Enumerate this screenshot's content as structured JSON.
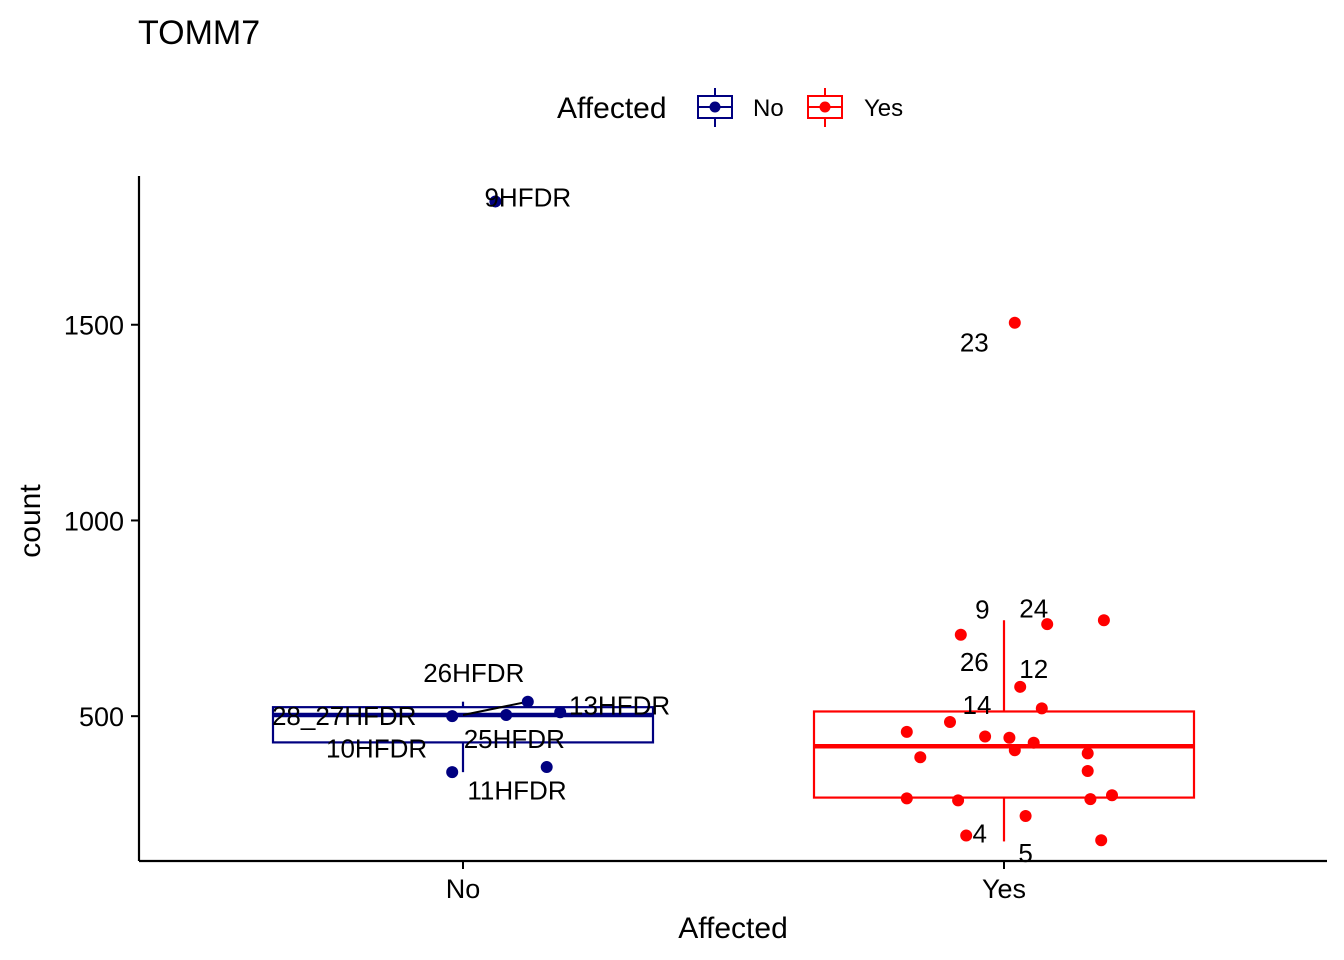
{
  "chart_data": {
    "type": "box-scatter",
    "title": "TOMM7",
    "xlabel": "Affected",
    "ylabel": "count",
    "categories": [
      "No",
      "Yes"
    ],
    "yticks": [
      500,
      1000,
      1500
    ],
    "ylim": [
      130,
      1880
    ],
    "legend": {
      "title": "Affected",
      "position": "top",
      "entries": [
        {
          "label": "No",
          "color": "#000080"
        },
        {
          "label": "Yes",
          "color": "#ff0000"
        }
      ]
    },
    "boxes": [
      {
        "group": "No",
        "color": "#000080",
        "q1": 433,
        "median": 503,
        "q3": 523,
        "whisker_low": 357,
        "whisker_high": 537
      },
      {
        "group": "Yes",
        "color": "#ff0000",
        "q1": 292,
        "median": 423,
        "q3": 512,
        "whisker_low": 180,
        "whisker_high": 745
      }
    ],
    "points": [
      {
        "group": "No",
        "xj": 0.06,
        "y": 1815,
        "label": "9HFDR",
        "lx": 0.12,
        "ly": 1825
      },
      {
        "group": "No",
        "xj": 0.12,
        "y": 537,
        "label": "13HFDR",
        "lx": 0.29,
        "ly": 527
      },
      {
        "group": "No",
        "xj": 0.18,
        "y": 510,
        "label": "",
        "lx": null,
        "ly": null
      },
      {
        "group": "No",
        "xj": 0.08,
        "y": 503,
        "label": "",
        "lx": null,
        "ly": null
      },
      {
        "group": "No",
        "xj": -0.02,
        "y": 500,
        "label": "28_27HFDR",
        "lx": -0.22,
        "ly": 500
      },
      {
        "group": "No",
        "xj": -0.02,
        "y": 357,
        "label": "10HFDR",
        "lx": -0.16,
        "ly": 418
      },
      {
        "group": "No",
        "xj": 0.155,
        "y": 370,
        "label": "11HFDR",
        "lx": 0.1,
        "ly": 310
      },
      {
        "group": "No",
        "xj": null,
        "y": null,
        "label": "26HFDR",
        "lx": 0.02,
        "ly": 610
      },
      {
        "group": "No",
        "xj": null,
        "y": null,
        "label": "25HFDR",
        "lx": 0.095,
        "ly": 442
      },
      {
        "group": "Yes",
        "xj": 0.02,
        "y": 1505,
        "label": "23",
        "lx": -0.055,
        "ly": 1455
      },
      {
        "group": "Yes",
        "xj": -0.08,
        "y": 708,
        "label": "9",
        "lx": -0.04,
        "ly": 772
      },
      {
        "group": "Yes",
        "xj": 0.08,
        "y": 735,
        "label": "24",
        "lx": 0.055,
        "ly": 775
      },
      {
        "group": "Yes",
        "xj": 0.185,
        "y": 745,
        "label": "",
        "lx": null,
        "ly": null
      },
      {
        "group": "Yes",
        "xj": null,
        "y": null,
        "label": "26",
        "lx": -0.055,
        "ly": 638
      },
      {
        "group": "Yes",
        "xj": 0.03,
        "y": 575,
        "label": "12",
        "lx": 0.055,
        "ly": 620
      },
      {
        "group": "Yes",
        "xj": 0.07,
        "y": 520,
        "label": "",
        "lx": null,
        "ly": null
      },
      {
        "group": "Yes",
        "xj": -0.1,
        "y": 485,
        "label": "14",
        "lx": -0.05,
        "ly": 528
      },
      {
        "group": "Yes",
        "xj": -0.18,
        "y": 460,
        "label": "",
        "lx": null,
        "ly": null
      },
      {
        "group": "Yes",
        "xj": -0.035,
        "y": 448,
        "label": "",
        "lx": null,
        "ly": null
      },
      {
        "group": "Yes",
        "xj": 0.01,
        "y": 445,
        "label": "",
        "lx": null,
        "ly": null
      },
      {
        "group": "Yes",
        "xj": 0.055,
        "y": 432,
        "label": "",
        "lx": null,
        "ly": null
      },
      {
        "group": "Yes",
        "xj": 0.02,
        "y": 413,
        "label": "",
        "lx": null,
        "ly": null
      },
      {
        "group": "Yes",
        "xj": -0.155,
        "y": 395,
        "label": "",
        "lx": null,
        "ly": null
      },
      {
        "group": "Yes",
        "xj": 0.155,
        "y": 405,
        "label": "",
        "lx": null,
        "ly": null
      },
      {
        "group": "Yes",
        "xj": 0.155,
        "y": 360,
        "label": "",
        "lx": null,
        "ly": null
      },
      {
        "group": "Yes",
        "xj": -0.18,
        "y": 290,
        "label": "",
        "lx": null,
        "ly": null
      },
      {
        "group": "Yes",
        "xj": -0.085,
        "y": 285,
        "label": "",
        "lx": null,
        "ly": null
      },
      {
        "group": "Yes",
        "xj": 0.16,
        "y": 288,
        "label": "",
        "lx": null,
        "ly": null
      },
      {
        "group": "Yes",
        "xj": 0.2,
        "y": 298,
        "label": "",
        "lx": null,
        "ly": null
      },
      {
        "group": "Yes",
        "xj": 0.04,
        "y": 245,
        "label": "",
        "lx": null,
        "ly": null
      },
      {
        "group": "Yes",
        "xj": -0.07,
        "y": 195,
        "label": "4",
        "lx": -0.045,
        "ly": 200
      },
      {
        "group": "Yes",
        "xj": 0.18,
        "y": 183,
        "label": "",
        "lx": null,
        "ly": null
      },
      {
        "group": "Yes",
        "xj": null,
        "y": null,
        "label": "5",
        "lx": 0.04,
        "ly": 150
      }
    ]
  }
}
